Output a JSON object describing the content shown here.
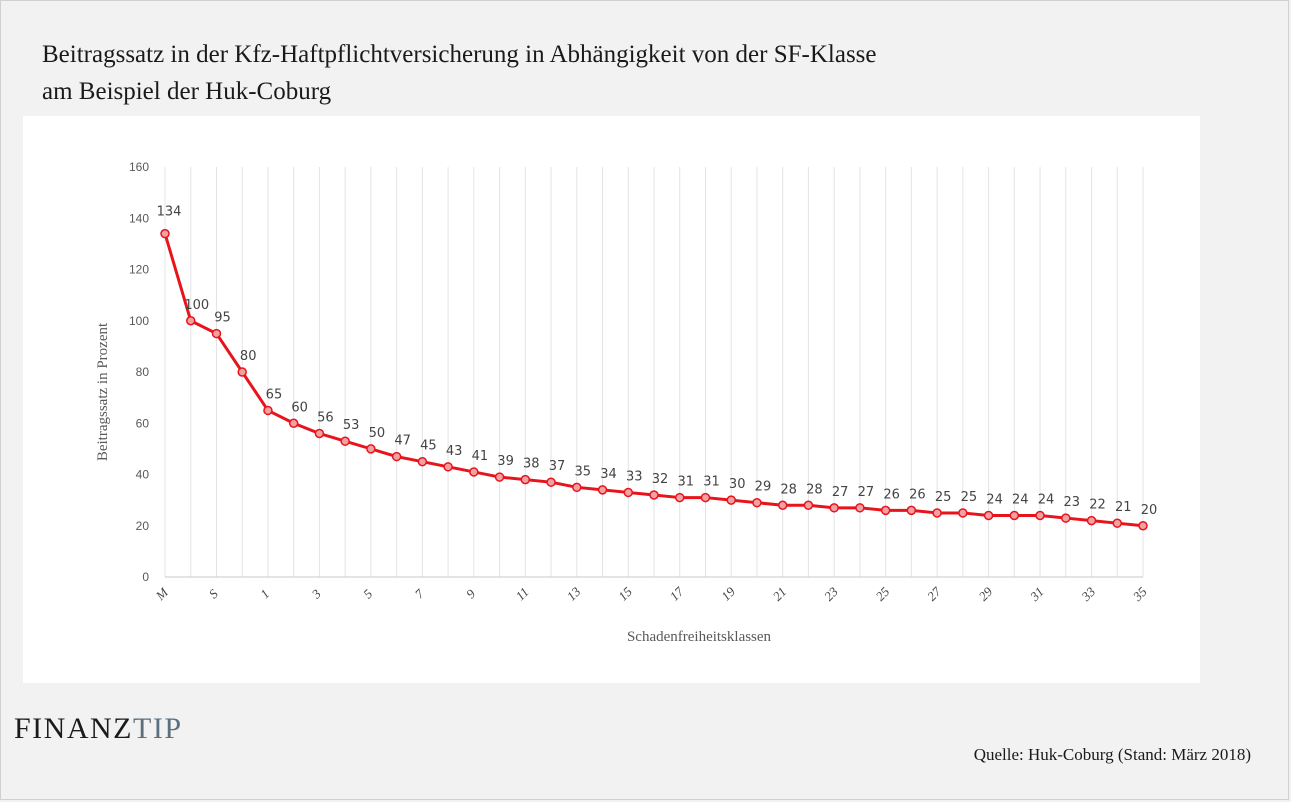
{
  "title": "Beitragssatz in der Kfz-Haftpflichtversicherung in Abhängigkeit von der SF-Klasse\nam Beispiel der Huk-Coburg",
  "logo": {
    "part1": "FINANZ",
    "part2": "TIP"
  },
  "source": "Quelle: Huk-Coburg (Stand: März 2018)",
  "colors": {
    "line": "#e8141b",
    "marker_fill": "#f1a0a3",
    "grid": "#e4e4e4",
    "panel": "#ffffff",
    "background": "#f2f2f2"
  },
  "chart_data": {
    "type": "line",
    "xlabel": "Schadenfreiheitsklassen",
    "ylabel": "Beitragssatz in Prozent",
    "ylim": [
      0,
      160
    ],
    "yticks": [
      0,
      20,
      40,
      60,
      80,
      100,
      120,
      140,
      160
    ],
    "categories": [
      "M",
      "",
      "S",
      "",
      "1",
      "",
      "3",
      "",
      "5",
      "",
      "7",
      "",
      "9",
      "",
      "11",
      "",
      "13",
      "",
      "15",
      "",
      "17",
      "",
      "19",
      "",
      "21",
      "",
      "23",
      "",
      "25",
      "",
      "27",
      "",
      "29",
      "",
      "31",
      "",
      "33",
      "",
      "35"
    ],
    "values": [
      134,
      100,
      95,
      80,
      65,
      60,
      56,
      53,
      50,
      47,
      45,
      43,
      41,
      39,
      38,
      37,
      35,
      34,
      33,
      32,
      31,
      31,
      30,
      29,
      28,
      28,
      27,
      27,
      26,
      26,
      25,
      25,
      24,
      24,
      24,
      23,
      22,
      21,
      20
    ],
    "grid": "vertical",
    "legend": "none"
  }
}
